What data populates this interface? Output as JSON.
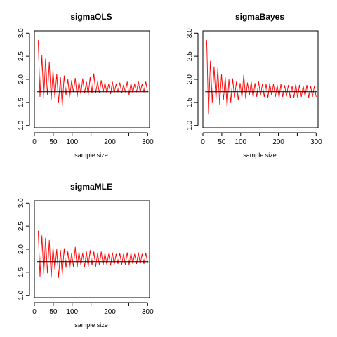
{
  "chart_data": [
    {
      "type": "line",
      "title": "sigmaOLS",
      "xlabel": "sample size",
      "ylabel": "",
      "xlim": [
        0,
        305
      ],
      "ylim": [
        0.95,
        3.05
      ],
      "x_ticks": [
        0,
        50,
        100,
        150,
        200,
        250,
        300
      ],
      "x_tick_labels": [
        "0",
        "50",
        "100",
        "",
        "200",
        "",
        "300"
      ],
      "y_ticks": [
        1.0,
        1.5,
        2.0,
        2.5,
        3.0
      ],
      "y_tick_labels": [
        "1.0",
        "1.5",
        "2.0",
        "2.5",
        "3.0"
      ],
      "reference_line": 1.73,
      "series": [
        {
          "color": "#ff0000",
          "x_start": 10,
          "x_end": 300,
          "values": [
            2.85,
            1.62,
            2.52,
            1.58,
            2.45,
            1.65,
            2.38,
            1.55,
            2.2,
            1.6,
            2.12,
            1.5,
            2.05,
            1.42,
            2.08,
            1.65,
            2.0,
            1.6,
            1.98,
            1.72,
            2.03,
            1.62,
            1.95,
            1.68,
            2.02,
            1.7,
            1.95,
            1.66,
            2.05,
            1.7,
            2.13,
            1.7,
            1.95,
            1.7,
            1.98,
            1.72,
            1.93,
            1.7,
            1.9,
            1.68,
            1.95,
            1.7,
            1.9,
            1.72,
            1.93,
            1.7,
            1.88,
            1.72,
            1.95,
            1.66,
            1.92,
            1.7,
            1.9,
            1.72,
            1.96,
            1.72,
            1.9,
            1.72,
            1.95,
            1.72
          ]
        }
      ]
    },
    {
      "type": "line",
      "title": "sigmaBayes",
      "xlabel": "sample size",
      "ylabel": "",
      "xlim": [
        0,
        305
      ],
      "ylim": [
        0.95,
        3.05
      ],
      "x_ticks": [
        0,
        50,
        100,
        150,
        200,
        250,
        300
      ],
      "x_tick_labels": [
        "0",
        "50",
        "100",
        "",
        "200",
        "",
        "300"
      ],
      "y_ticks": [
        1.0,
        1.5,
        2.0,
        2.5,
        3.0
      ],
      "y_tick_labels": [
        "1.0",
        "1.5",
        "2.0",
        "2.5",
        "3.0"
      ],
      "reference_line": 1.73,
      "series": [
        {
          "color": "#ff0000",
          "x_start": 10,
          "x_end": 300,
          "values": [
            2.85,
            1.25,
            2.4,
            1.5,
            2.28,
            1.55,
            2.25,
            1.45,
            2.12,
            1.55,
            2.05,
            1.4,
            2.0,
            1.5,
            2.02,
            1.6,
            1.95,
            1.55,
            1.92,
            1.6,
            2.1,
            1.58,
            1.93,
            1.65,
            1.95,
            1.6,
            1.92,
            1.62,
            1.95,
            1.65,
            1.9,
            1.62,
            1.9,
            1.6,
            1.92,
            1.65,
            1.9,
            1.62,
            1.88,
            1.6,
            1.9,
            1.62,
            1.87,
            1.63,
            1.88,
            1.6,
            1.86,
            1.6,
            1.9,
            1.6,
            1.88,
            1.62,
            1.86,
            1.63,
            1.88,
            1.6,
            1.86,
            1.62,
            1.85,
            1.62
          ]
        }
      ]
    },
    {
      "type": "line",
      "title": "sigmaMLE",
      "xlabel": "sample size",
      "ylabel": "",
      "xlim": [
        0,
        305
      ],
      "ylim": [
        0.95,
        3.05
      ],
      "x_ticks": [
        0,
        50,
        100,
        150,
        200,
        250,
        300
      ],
      "x_tick_labels": [
        "0",
        "50",
        "100",
        "",
        "200",
        "",
        "300"
      ],
      "y_ticks": [
        1.0,
        1.5,
        2.0,
        2.5,
        3.0
      ],
      "y_tick_labels": [
        "1.0",
        "1.5",
        "2.0",
        "2.5",
        "3.0"
      ],
      "reference_line": 1.73,
      "series": [
        {
          "color": "#ff0000",
          "x_start": 10,
          "x_end": 300,
          "values": [
            2.4,
            1.4,
            2.3,
            1.45,
            2.25,
            1.48,
            2.2,
            1.38,
            2.05,
            1.55,
            2.0,
            1.38,
            1.98,
            1.45,
            2.02,
            1.6,
            1.95,
            1.58,
            1.92,
            1.62,
            2.05,
            1.6,
            1.95,
            1.65,
            1.92,
            1.62,
            1.95,
            1.62,
            1.98,
            1.65,
            1.95,
            1.62,
            1.92,
            1.65,
            1.95,
            1.65,
            1.92,
            1.66,
            1.9,
            1.65,
            1.93,
            1.66,
            1.9,
            1.68,
            1.92,
            1.66,
            1.9,
            1.66,
            1.93,
            1.66,
            1.92,
            1.68,
            1.9,
            1.68,
            1.93,
            1.68,
            1.9,
            1.68,
            1.92,
            1.7
          ]
        }
      ]
    }
  ]
}
